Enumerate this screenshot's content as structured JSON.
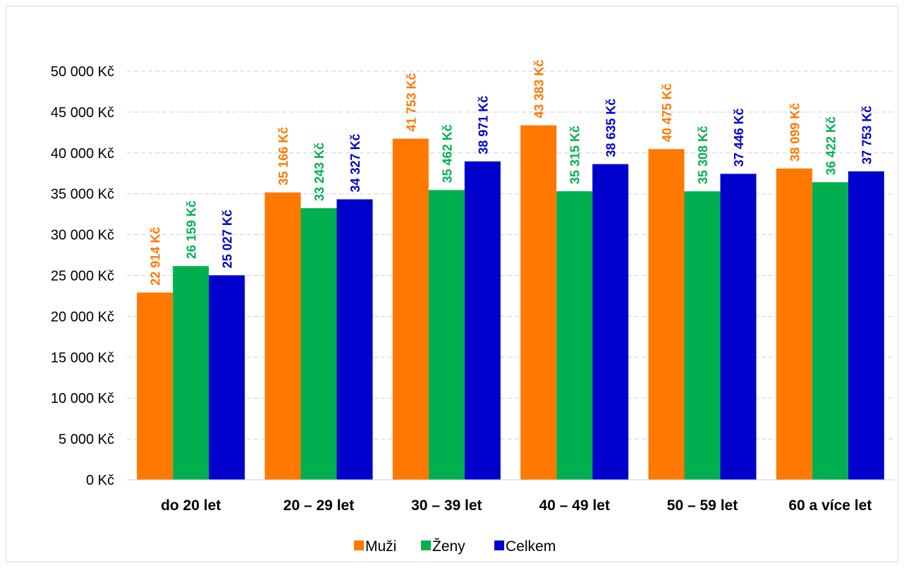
{
  "chart_data": {
    "type": "bar",
    "title": "",
    "xlabel": "",
    "ylabel": "",
    "categories": [
      "do 20 let",
      "20 – 29 let",
      "30 – 39 let",
      "40 – 49 let",
      "50 – 59 let",
      "60 a více let"
    ],
    "series": [
      {
        "name": "Muži",
        "color": "#ff7800",
        "values": [
          22914,
          35166,
          41753,
          43383,
          40475,
          38099
        ],
        "labels": [
          "22 914 Kč",
          "35 166 Kč",
          "41 753 Kč",
          "43 383 Kč",
          "40 475 Kč",
          "38 099 Kč"
        ]
      },
      {
        "name": "Ženy",
        "color": "#00b050",
        "values": [
          26159,
          33243,
          35462,
          35315,
          35308,
          36422
        ],
        "labels": [
          "26 159 Kč",
          "33 243 Kč",
          "35 462 Kč",
          "35 315 Kč",
          "35 308 Kč",
          "36 422 Kč"
        ]
      },
      {
        "name": "Celkem",
        "color": "#0000cc",
        "values": [
          25027,
          34327,
          38971,
          38635,
          37446,
          37753
        ],
        "labels": [
          "25 027 Kč",
          "34 327 Kč",
          "38 971 Kč",
          "38 635 Kč",
          "37 446 Kč",
          "37 753 Kč"
        ]
      }
    ],
    "ylim": [
      0,
      50000
    ],
    "yticks": [
      0,
      5000,
      10000,
      15000,
      20000,
      25000,
      30000,
      35000,
      40000,
      45000,
      50000
    ],
    "ytick_labels": [
      "0 Kč",
      "5 000 Kč",
      "10 000 Kč",
      "15 000 Kč",
      "20 000 Kč",
      "25 000 Kč",
      "30 000 Kč",
      "35 000 Kč",
      "40 000 Kč",
      "45 000 Kč",
      "50 000 Kč"
    ],
    "grid": true,
    "legend": {
      "placement": "bottom"
    }
  }
}
